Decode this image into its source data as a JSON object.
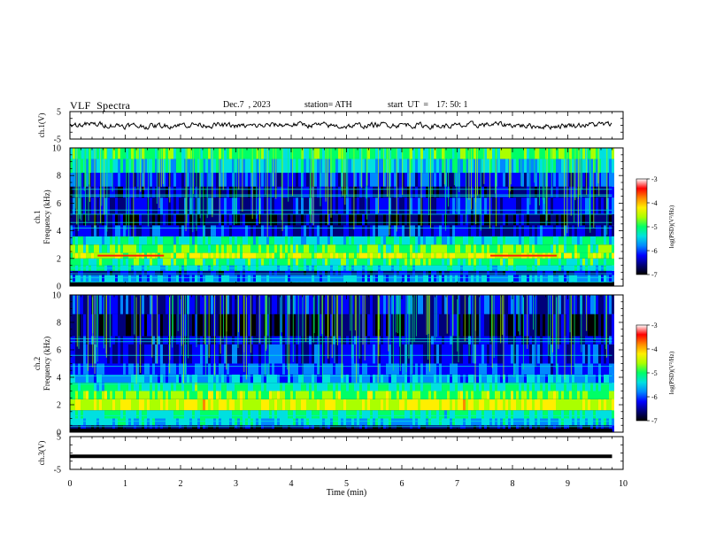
{
  "header": {
    "title": "VLF  Spectra",
    "date": "Dec.7  , 2023",
    "station": "station= ATH",
    "start_label": "start  UT  =",
    "start_time": "17: 50: 1"
  },
  "chart_data": [
    {
      "type": "line",
      "panel": "ch1-waveform",
      "ylabel": "ch.1(V)",
      "yticks": [
        "5",
        "-5"
      ],
      "ylim": [
        -5,
        5
      ],
      "trace": "noisy signal around ~0 V, small fluctuations across full 0–9.8 min"
    },
    {
      "type": "heatmap",
      "panel": "ch1-spectrogram",
      "ylabel": "ch.1\nFrequency  (kHz)",
      "ylabel_line1": "ch.1",
      "ylabel_line2": "Frequency  (kHz)",
      "yticks": [
        "0",
        "2",
        "4",
        "6",
        "8",
        "10"
      ],
      "ylim": [
        0,
        10
      ],
      "bands": [
        {
          "f_from": 0,
          "f_to": 0.3,
          "level": -7
        },
        {
          "f_from": 0.3,
          "f_to": 0.8,
          "level": -5.6
        },
        {
          "f_from": 0.8,
          "f_to": 1.1,
          "level": -6.4
        },
        {
          "f_from": 1.1,
          "f_to": 1.5,
          "level": -5.2
        },
        {
          "f_from": 1.5,
          "f_to": 2.0,
          "level": -4.8
        },
        {
          "f_from": 2.0,
          "f_to": 2.4,
          "level": -4.2
        },
        {
          "f_from": 2.4,
          "f_to": 3.0,
          "level": -4.6
        },
        {
          "f_from": 3.0,
          "f_to": 3.6,
          "level": -5.1
        },
        {
          "f_from": 3.6,
          "f_to": 4.4,
          "level": -6.2
        },
        {
          "f_from": 4.4,
          "f_to": 5.2,
          "level": -6.7
        },
        {
          "f_from": 5.2,
          "f_to": 6.4,
          "level": -6.2
        },
        {
          "f_from": 6.4,
          "f_to": 7.2,
          "level": -6.4
        },
        {
          "f_from": 7.2,
          "f_to": 8.2,
          "level": -6.0
        },
        {
          "f_from": 8.2,
          "f_to": 9.2,
          "level": -5.3
        },
        {
          "f_from": 9.2,
          "f_to": 10.0,
          "level": -4.8
        }
      ],
      "lines_khz": [
        0.3,
        0.6,
        0.9,
        1.3,
        4.2,
        4.6,
        5.2,
        5.5,
        6.5,
        6.6,
        7.0
      ],
      "red_segments": [
        {
          "t_from": 0.5,
          "t_to": 1.7,
          "f": 2.2
        },
        {
          "t_from": 7.6,
          "t_to": 8.8,
          "f": 2.2
        }
      ]
    },
    {
      "type": "heatmap",
      "panel": "ch2-spectrogram",
      "ylabel": "ch.2\nFrequency  (kHz)",
      "ylabel_line1": "ch.2",
      "ylabel_line2": "Frequency  (kHz)",
      "yticks": [
        "0",
        "2",
        "4",
        "6",
        "8",
        "10"
      ],
      "ylim": [
        0,
        10
      ],
      "bands": [
        {
          "f_from": 0,
          "f_to": 0.5,
          "level": -6.6
        },
        {
          "f_from": 0.5,
          "f_to": 1.0,
          "level": -5.3
        },
        {
          "f_from": 1.0,
          "f_to": 1.6,
          "level": -5.0
        },
        {
          "f_from": 1.6,
          "f_to": 2.4,
          "level": -4.1
        },
        {
          "f_from": 2.4,
          "f_to": 3.0,
          "level": -4.5
        },
        {
          "f_from": 3.0,
          "f_to": 3.6,
          "level": -5.0
        },
        {
          "f_from": 3.6,
          "f_to": 4.2,
          "level": -5.6
        },
        {
          "f_from": 4.2,
          "f_to": 5.0,
          "level": -5.9
        },
        {
          "f_from": 5.0,
          "f_to": 6.4,
          "level": -6.2
        },
        {
          "f_from": 6.4,
          "f_to": 7.0,
          "level": -6.3
        },
        {
          "f_from": 7.0,
          "f_to": 8.6,
          "level": -6.6
        },
        {
          "f_from": 8.6,
          "f_to": 10.0,
          "level": -6.2
        }
      ],
      "lines_khz": [
        0.4,
        0.8,
        1.2,
        3.5,
        4.1,
        4.8,
        5.6,
        6.6,
        6.8
      ],
      "red_segments": []
    },
    {
      "type": "line",
      "panel": "ch3-waveform",
      "ylabel": "ch.3(V)",
      "yticks": [
        "5",
        "-5"
      ],
      "ylim": [
        -5,
        5
      ],
      "trace": "flat thick line near -1 V across full record"
    }
  ],
  "time_axis": {
    "xlabel": "Time  (min)",
    "xticks": [
      "0",
      "1",
      "2",
      "3",
      "4",
      "5",
      "6",
      "7",
      "8",
      "9",
      "10"
    ],
    "xlim": [
      0,
      10
    ],
    "data_end_min": 9.8
  },
  "colorbars": [
    {
      "label": "log(PSD)(V²/Hz)",
      "ticks": [
        "-3",
        "-4",
        "-5",
        "-6",
        "-7"
      ],
      "range": [
        -7,
        -3
      ]
    },
    {
      "label": "log(PSD)(V²/Hz)",
      "ticks": [
        "-3",
        "-4",
        "-5",
        "-6",
        "-7"
      ],
      "range": [
        -7,
        -3
      ]
    }
  ],
  "colors": {
    "map": [
      "#000000",
      "#00007a",
      "#0000ff",
      "#0088ff",
      "#00e0e0",
      "#00ff66",
      "#aaff00",
      "#ffee00",
      "#ff8800",
      "#ff0000",
      "#ffffff"
    ]
  }
}
